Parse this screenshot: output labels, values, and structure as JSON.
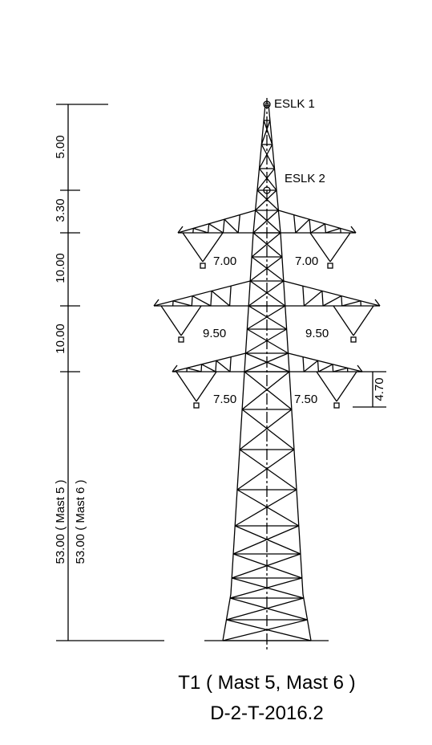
{
  "labels": {
    "eslk1": "ESLK 1",
    "eslk2": "ESLK 2",
    "arm_top_left": "7.00",
    "arm_top_right": "7.00",
    "arm_mid_left": "9.50",
    "arm_mid_right": "9.50",
    "arm_low_left": "7.50",
    "arm_low_right": "7.50",
    "insulator_height": "4.70"
  },
  "dimensions": {
    "d1": "5.00",
    "d2": "3.30",
    "d3": "10.00",
    "d4": "10.00",
    "total_mast5": "53.00 ( Mast 5 )",
    "total_mast6": "53.00 ( Mast 6 )"
  },
  "caption": {
    "title": "T1 ( Mast 5, Mast 6 )",
    "code": "D-2-T-2016.2"
  }
}
